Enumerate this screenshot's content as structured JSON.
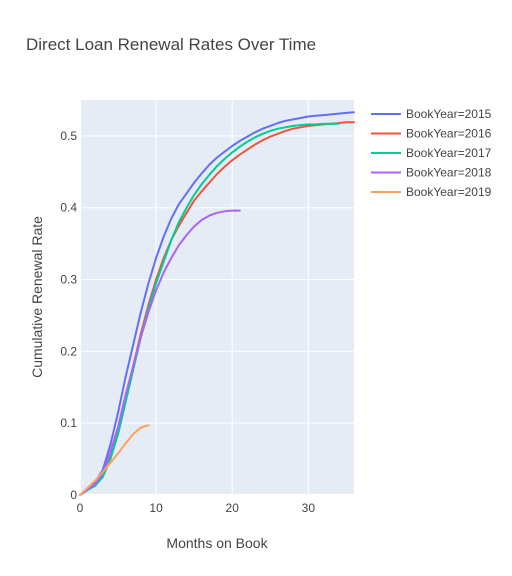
{
  "chart_data": {
    "type": "line",
    "title": "Direct Loan Renewal Rates Over Time",
    "xlabel": "Months on Book",
    "ylabel": "Cumulative Renewal Rate",
    "xlim": [
      0,
      36
    ],
    "ylim": [
      0,
      0.55
    ],
    "xticks": [
      0,
      10,
      20,
      30
    ],
    "yticks": [
      0,
      0.1,
      0.2,
      0.3,
      0.4,
      0.5
    ],
    "xtick_labels": [
      "0",
      "10",
      "20",
      "30"
    ],
    "ytick_labels": [
      "0",
      "0.1",
      "0.2",
      "0.3",
      "0.4",
      "0.5"
    ],
    "grid": true,
    "legend_position": "right",
    "series": [
      {
        "name": "BookYear=2015",
        "color": "#636efa",
        "x": [
          0,
          1,
          2,
          3,
          4,
          5,
          6,
          7,
          8,
          9,
          10,
          11,
          12,
          13,
          14,
          15,
          16,
          17,
          18,
          19,
          20,
          21,
          22,
          23,
          24,
          25,
          26,
          27,
          28,
          29,
          30,
          31,
          32,
          33,
          34,
          35,
          36
        ],
        "y": [
          0,
          0.008,
          0.018,
          0.035,
          0.07,
          0.115,
          0.165,
          0.21,
          0.255,
          0.295,
          0.33,
          0.36,
          0.385,
          0.405,
          0.42,
          0.435,
          0.448,
          0.46,
          0.47,
          0.478,
          0.486,
          0.493,
          0.499,
          0.505,
          0.51,
          0.514,
          0.518,
          0.521,
          0.523,
          0.525,
          0.527,
          0.528,
          0.529,
          0.53,
          0.531,
          0.532,
          0.533
        ]
      },
      {
        "name": "BookYear=2016",
        "color": "#ef553b",
        "x": [
          0,
          1,
          2,
          3,
          4,
          5,
          6,
          7,
          8,
          9,
          10,
          11,
          12,
          13,
          14,
          15,
          16,
          17,
          18,
          19,
          20,
          21,
          22,
          23,
          24,
          25,
          26,
          27,
          28,
          29,
          30,
          31,
          32,
          33,
          34,
          35,
          36
        ],
        "y": [
          0,
          0.008,
          0.015,
          0.028,
          0.055,
          0.09,
          0.135,
          0.18,
          0.225,
          0.265,
          0.3,
          0.33,
          0.355,
          0.375,
          0.393,
          0.41,
          0.423,
          0.435,
          0.447,
          0.457,
          0.466,
          0.474,
          0.481,
          0.488,
          0.494,
          0.499,
          0.503,
          0.507,
          0.51,
          0.512,
          0.514,
          0.515,
          0.516,
          0.517,
          0.518,
          0.519,
          0.519
        ]
      },
      {
        "name": "BookYear=2017",
        "color": "#00cc96",
        "x": [
          0,
          1,
          2,
          3,
          4,
          5,
          6,
          7,
          8,
          9,
          10,
          11,
          12,
          13,
          14,
          15,
          16,
          17,
          18,
          19,
          20,
          21,
          22,
          23,
          24,
          25,
          26,
          27,
          28,
          29,
          30,
          31,
          32,
          33,
          34
        ],
        "y": [
          0,
          0.007,
          0.013,
          0.025,
          0.05,
          0.085,
          0.13,
          0.175,
          0.22,
          0.26,
          0.295,
          0.325,
          0.355,
          0.38,
          0.4,
          0.418,
          0.433,
          0.446,
          0.458,
          0.468,
          0.477,
          0.485,
          0.492,
          0.498,
          0.503,
          0.507,
          0.51,
          0.512,
          0.514,
          0.515,
          0.516,
          0.516,
          0.517,
          0.517,
          0.517
        ]
      },
      {
        "name": "BookYear=2018",
        "color": "#ab63fa",
        "x": [
          0,
          1,
          2,
          3,
          4,
          5,
          6,
          7,
          8,
          9,
          10,
          11,
          12,
          13,
          14,
          15,
          16,
          17,
          18,
          19,
          20,
          21
        ],
        "y": [
          0,
          0.008,
          0.015,
          0.03,
          0.06,
          0.095,
          0.14,
          0.18,
          0.22,
          0.255,
          0.285,
          0.31,
          0.33,
          0.348,
          0.362,
          0.374,
          0.383,
          0.389,
          0.393,
          0.395,
          0.396,
          0.396
        ]
      },
      {
        "name": "BookYear=2019",
        "color": "#ffa15a",
        "x": [
          0,
          1,
          2,
          3,
          4,
          5,
          6,
          7,
          8,
          9
        ],
        "y": [
          0,
          0.01,
          0.02,
          0.032,
          0.045,
          0.058,
          0.072,
          0.085,
          0.094,
          0.097
        ]
      }
    ]
  }
}
